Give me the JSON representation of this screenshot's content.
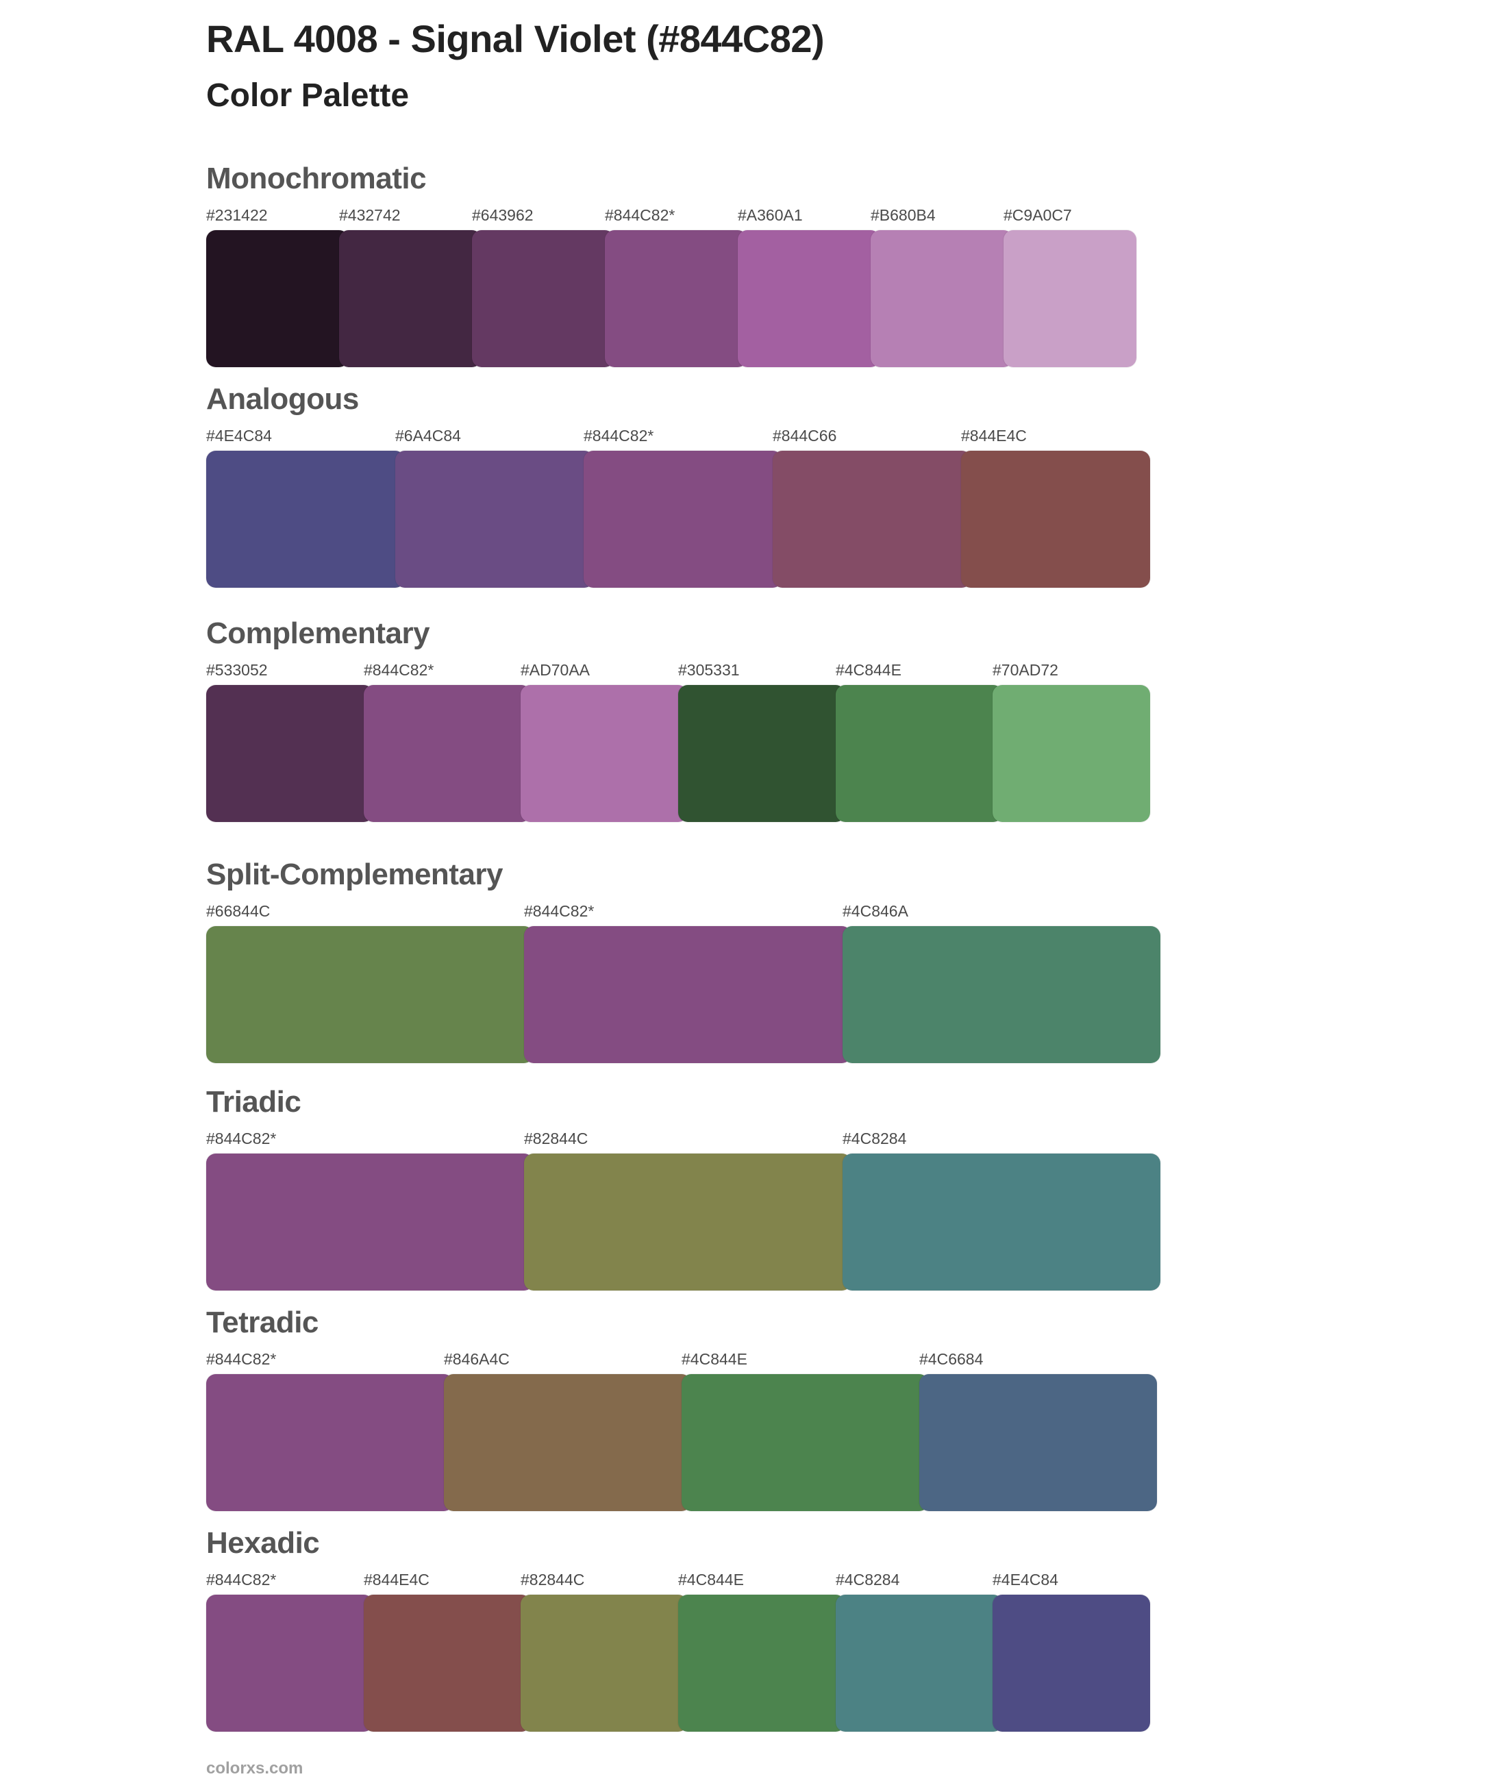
{
  "header": {
    "title": "RAL 4008 - Signal Violet (#844C82)",
    "subtitle": "Color Palette"
  },
  "base_color": "#844C82",
  "sections": [
    {
      "name": "Monochromatic",
      "colors": [
        {
          "label": "#231422",
          "hex": "#231422"
        },
        {
          "label": "#432742",
          "hex": "#432742"
        },
        {
          "label": "#643962",
          "hex": "#643962"
        },
        {
          "label": "#844C82*",
          "hex": "#844C82"
        },
        {
          "label": "#A360A1",
          "hex": "#A360A1"
        },
        {
          "label": "#B680B4",
          "hex": "#B680B4"
        },
        {
          "label": "#C9A0C7",
          "hex": "#C9A0C7"
        }
      ]
    },
    {
      "name": "Analogous",
      "colors": [
        {
          "label": "#4E4C84",
          "hex": "#4E4C84"
        },
        {
          "label": "#6A4C84",
          "hex": "#6A4C84"
        },
        {
          "label": "#844C82*",
          "hex": "#844C82"
        },
        {
          "label": "#844C66",
          "hex": "#844C66"
        },
        {
          "label": "#844E4C",
          "hex": "#844E4C"
        }
      ]
    },
    {
      "name": "Complementary",
      "colors": [
        {
          "label": "#533052",
          "hex": "#533052"
        },
        {
          "label": "#844C82*",
          "hex": "#844C82"
        },
        {
          "label": "#AD70AA",
          "hex": "#AD70AA"
        },
        {
          "label": "#305331",
          "hex": "#305331"
        },
        {
          "label": "#4C844E",
          "hex": "#4C844E"
        },
        {
          "label": "#70AD72",
          "hex": "#70AD72"
        }
      ]
    },
    {
      "name": "Split-Complementary",
      "colors": [
        {
          "label": "#66844C",
          "hex": "#66844C"
        },
        {
          "label": "#844C82*",
          "hex": "#844C82"
        },
        {
          "label": "#4C846A",
          "hex": "#4C846A"
        }
      ]
    },
    {
      "name": "Triadic",
      "colors": [
        {
          "label": "#844C82*",
          "hex": "#844C82"
        },
        {
          "label": "#82844C",
          "hex": "#82844C"
        },
        {
          "label": "#4C8284",
          "hex": "#4C8284"
        }
      ]
    },
    {
      "name": "Tetradic",
      "colors": [
        {
          "label": "#844C82*",
          "hex": "#844C82"
        },
        {
          "label": "#846A4C",
          "hex": "#846A4C"
        },
        {
          "label": "#4C844E",
          "hex": "#4C844E"
        },
        {
          "label": "#4C6684",
          "hex": "#4C6684"
        }
      ]
    },
    {
      "name": "Hexadic",
      "colors": [
        {
          "label": "#844C82*",
          "hex": "#844C82"
        },
        {
          "label": "#844E4C",
          "hex": "#844E4C"
        },
        {
          "label": "#82844C",
          "hex": "#82844C"
        },
        {
          "label": "#4C844E",
          "hex": "#4C844E"
        },
        {
          "label": "#4C8284",
          "hex": "#4C8284"
        },
        {
          "label": "#4E4C84",
          "hex": "#4E4C84"
        }
      ]
    }
  ],
  "footer": {
    "site": "colorxs.com"
  }
}
